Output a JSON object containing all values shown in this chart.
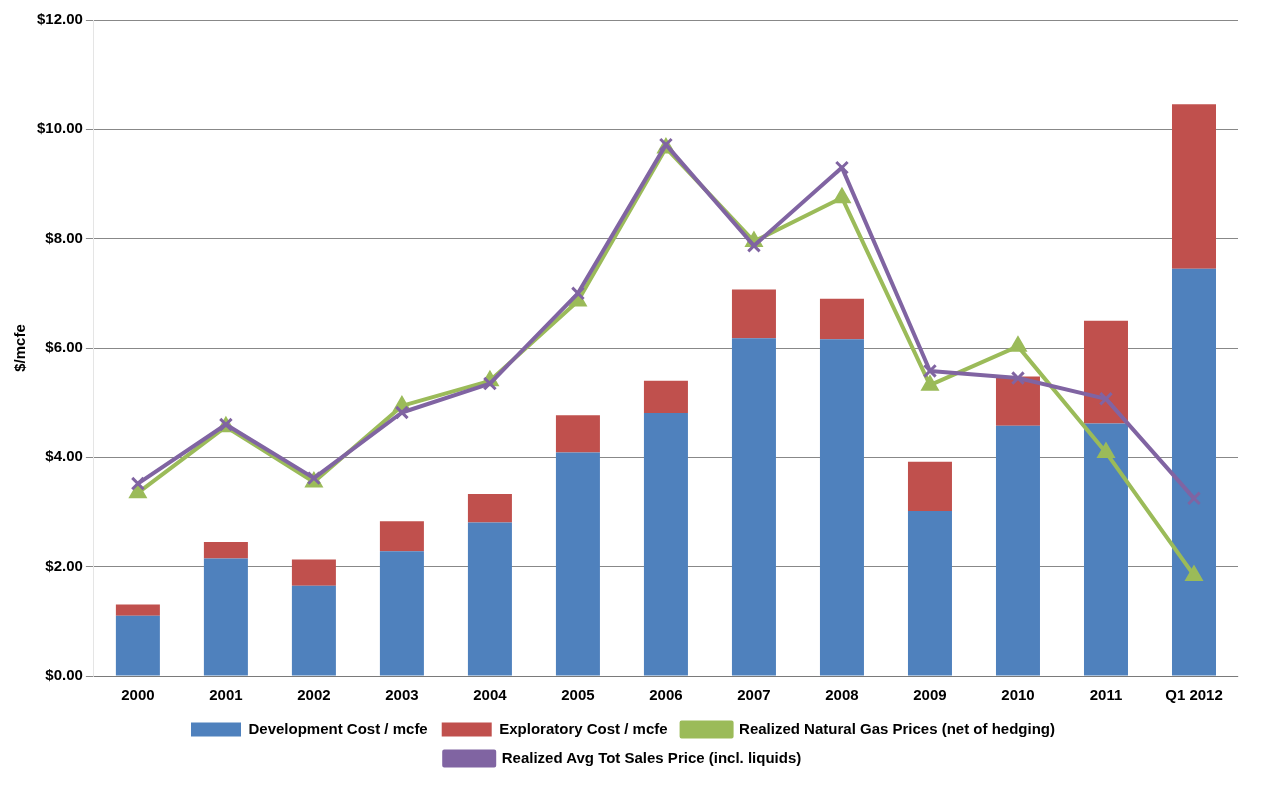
{
  "chart_data": {
    "type": "bar",
    "ylabel": "$/mcfe",
    "stacked": true,
    "grid": "y",
    "legend": "bottom",
    "categories": [
      "2000",
      "2001",
      "2002",
      "2003",
      "2004",
      "2005",
      "2006",
      "2007",
      "2008",
      "2009",
      "2010",
      "2011",
      "Q1 2012"
    ],
    "ylim": [
      0,
      12
    ],
    "yticks": [
      {
        "value": 0,
        "label": "$0.00"
      },
      {
        "value": 2,
        "label": "$2.00"
      },
      {
        "value": 4,
        "label": "$4.00"
      },
      {
        "value": 6,
        "label": "$6.00"
      },
      {
        "value": 8,
        "label": "$8.00"
      },
      {
        "value": 10,
        "label": "$10.00"
      },
      {
        "value": 12,
        "label": "$12.00"
      }
    ],
    "series": [
      {
        "name": "Development Cost / mcfe",
        "color": "#4f81bd",
        "values": [
          1.1,
          2.15,
          1.65,
          2.28,
          2.81,
          4.09,
          4.81,
          6.18,
          6.16,
          3.02,
          4.58,
          4.62,
          7.45
        ]
      },
      {
        "name": "Exploratory Cost / mcfe",
        "color": "#c0504d",
        "values": [
          0.21,
          0.3,
          0.48,
          0.55,
          0.52,
          0.68,
          0.59,
          0.89,
          0.74,
          0.9,
          0.9,
          1.88,
          3.01
        ]
      },
      {
        "name": "Realized Natural Gas Prices (net of hedging)",
        "type": "line",
        "marker": "triangle",
        "color": "#9bbb59",
        "values": [
          3.35,
          4.56,
          3.55,
          4.94,
          5.4,
          6.86,
          9.66,
          7.95,
          8.75,
          5.32,
          6.03,
          4.09,
          1.84
        ]
      },
      {
        "name": "Realized Avg Tot Sales Price (incl. liquids)",
        "type": "line",
        "marker": "cross",
        "color": "#8064a2",
        "values": [
          3.52,
          4.6,
          3.62,
          4.82,
          5.35,
          7.0,
          9.72,
          7.87,
          9.3,
          5.58,
          5.45,
          5.07,
          3.25
        ]
      }
    ]
  }
}
